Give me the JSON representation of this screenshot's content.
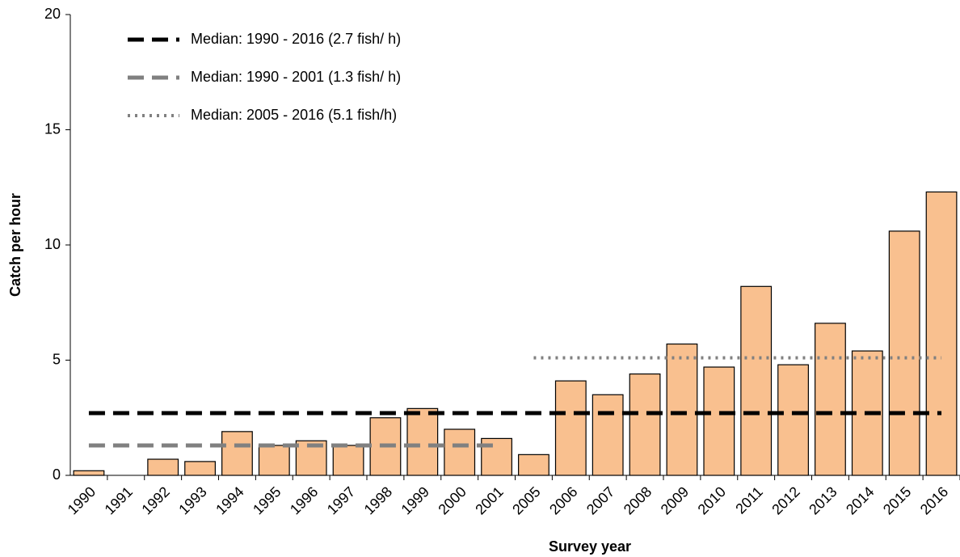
{
  "chart_data": {
    "type": "bar",
    "ylabel": "Catch per hour",
    "xlabel": "Survey year",
    "categories": [
      "1990",
      "1991",
      "1992",
      "1993",
      "1994",
      "1995",
      "1996",
      "1997",
      "1998",
      "1999",
      "2000",
      "2001",
      "2005",
      "2006",
      "2007",
      "2008",
      "2009",
      "2010",
      "2011",
      "2012",
      "2013",
      "2014",
      "2015",
      "2016"
    ],
    "values": [
      0.2,
      0,
      0.7,
      0.6,
      1.9,
      1.3,
      1.5,
      1.3,
      2.5,
      2.9,
      2.0,
      1.6,
      0.9,
      4.1,
      3.5,
      4.4,
      5.7,
      4.7,
      8.2,
      4.8,
      6.6,
      5.4,
      10.6,
      12.3
    ],
    "color": "#f9c08f",
    "ylim": [
      0,
      20
    ],
    "yticks": [
      0,
      5,
      10,
      15,
      20
    ],
    "legend": "top-left",
    "series": [
      {
        "name": "Median: 1990 - 2016 (2.7 fish/ h)",
        "color": "#000000",
        "dash": "dashed",
        "values": [
          2.7,
          2.7,
          2.7,
          2.7,
          2.7,
          2.7,
          2.7,
          2.7,
          2.7,
          2.7,
          2.7,
          2.7,
          2.7,
          2.7,
          2.7,
          2.7,
          2.7,
          2.7,
          2.7,
          2.7,
          2.7,
          2.7,
          2.7,
          2.7
        ]
      },
      {
        "name": "Median: 1990 - 2001 (1.3 fish/ h)",
        "color": "#808080",
        "dash": "dashed",
        "values": [
          1.3,
          1.3,
          1.3,
          1.3,
          1.3,
          1.3,
          1.3,
          1.3,
          1.3,
          1.3,
          1.3,
          1.3,
          null,
          null,
          null,
          null,
          null,
          null,
          null,
          null,
          null,
          null,
          null,
          null
        ]
      },
      {
        "name": "Median: 2005 - 2016 (5.1 fish/h)",
        "color": "#808080",
        "dash": "dotted",
        "values": [
          null,
          null,
          null,
          null,
          null,
          null,
          null,
          null,
          null,
          null,
          null,
          null,
          5.1,
          5.1,
          5.1,
          5.1,
          5.1,
          5.1,
          5.1,
          5.1,
          5.1,
          5.1,
          5.1,
          5.1
        ]
      }
    ]
  }
}
